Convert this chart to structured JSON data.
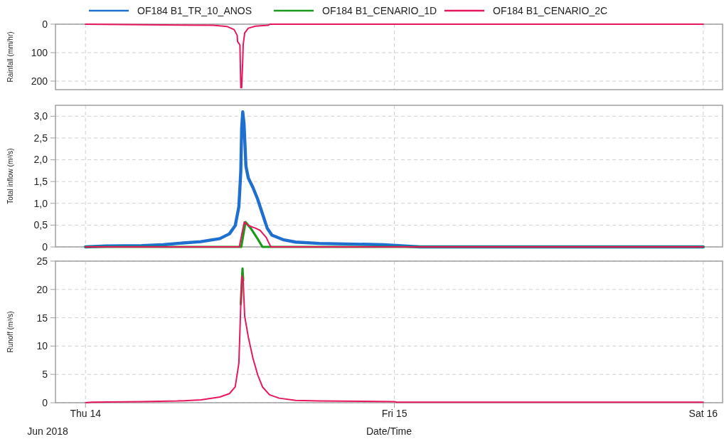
{
  "chart_data": [
    {
      "type": "line",
      "ylabel": "Rainfall (mm/hr)",
      "xlim": [
        "2018-06-13T21:40",
        "2018-06-16T01:30"
      ],
      "xticks": [
        {
          "value": "2018-06-14",
          "label": null
        },
        {
          "value": "2018-06-15",
          "label": null
        },
        {
          "value": "2018-06-16",
          "label": null
        }
      ],
      "ylim": [
        230,
        0
      ],
      "yticks": [
        0,
        100,
        200
      ],
      "grid": true,
      "tick_labels": "y",
      "series": [
        {
          "color": "#e8175d",
          "x": [
            "2018-06-14T00:00",
            "2018-06-14T09:56",
            "2018-06-14T10:59",
            "2018-06-14T11:33",
            "2018-06-14T11:47",
            "2018-06-14T11:49",
            "2018-06-14T12:00",
            "2018-06-14T12:04",
            "2018-06-14T12:08",
            "2018-06-14T12:13",
            "2018-06-14T12:15",
            "2018-06-14T12:22",
            "2018-06-14T12:39",
            "2018-06-14T13:12",
            "2018-06-14T14:11",
            "2018-06-14T14:20",
            "2018-06-16T00:00"
          ],
          "values": [
            0,
            4,
            8,
            19,
            39,
            61,
            73,
            223,
            223,
            127,
            73,
            31,
            14,
            7,
            4,
            0,
            0
          ]
        }
      ]
    },
    {
      "type": "line",
      "ylabel": "Total inflow (m³/s)",
      "xlim": [
        "2018-06-13T21:40",
        "2018-06-16T01:30"
      ],
      "xticks": [
        {
          "value": "2018-06-14",
          "label": null
        },
        {
          "value": "2018-06-15",
          "label": null
        },
        {
          "value": "2018-06-16",
          "label": null
        }
      ],
      "ylim": [
        0,
        3.25
      ],
      "yticks": [
        0,
        {
          "value": 0.5,
          "label": "0,5"
        },
        {
          "value": 1,
          "label": "1,0"
        },
        {
          "value": 1.5,
          "label": "1,5"
        },
        {
          "value": 2,
          "label": "2,0"
        },
        {
          "value": 2.5,
          "label": "2,5"
        },
        {
          "value": 3,
          "label": "3,0"
        }
      ],
      "grid": true,
      "tick_labels": "y",
      "legend": "top",
      "series": [
        {
          "name": "OF184 B1_TR_10_ANOS",
          "color": "#1f6fd1",
          "x": [
            "2018-06-14T00:00",
            "2018-06-14T01:36",
            "2018-06-14T04:22",
            "2018-06-14T06:01",
            "2018-06-14T07:08",
            "2018-06-14T08:58",
            "2018-06-14T10:26",
            "2018-06-14T11:11",
            "2018-06-14T11:38",
            "2018-06-14T11:55",
            "2018-06-14T12:04",
            "2018-06-14T12:08",
            "2018-06-14T12:13",
            "2018-06-14T12:19",
            "2018-06-14T12:28",
            "2018-06-14T12:39",
            "2018-06-14T13:01",
            "2018-06-14T13:23",
            "2018-06-14T13:45",
            "2018-06-14T14:07",
            "2018-06-14T14:29",
            "2018-06-14T15:25",
            "2018-06-14T16:20",
            "2018-06-14T18:10",
            "2018-06-14T23:09",
            "2018-06-15T00:48",
            "2018-06-15T02:00",
            "2018-06-16T00:00"
          ],
          "values": [
            0,
            0.02,
            0.03,
            0.05,
            0.08,
            0.12,
            0.19,
            0.3,
            0.49,
            0.92,
            1.74,
            2.72,
            3.1,
            2.83,
            1.85,
            1.58,
            1.36,
            1.09,
            0.76,
            0.43,
            0.27,
            0.16,
            0.11,
            0.08,
            0.05,
            0.02,
            0,
            0
          ]
        },
        {
          "name": "OF184 B1_CENARIO_1D",
          "color": "#1a9a1a",
          "x": [
            "2018-06-14T00:00",
            "2018-06-14T12:06",
            "2018-06-14T12:26",
            "2018-06-14T12:50",
            "2018-06-14T13:18",
            "2018-06-14T13:45",
            "2018-06-16T00:00"
          ],
          "values": [
            0,
            0,
            0.57,
            0.43,
            0.22,
            0,
            0
          ]
        },
        {
          "name": "OF184 B1_CENARIO_2C",
          "color": "#e8175d",
          "x": [
            "2018-06-14T00:00",
            "2018-06-14T11:57",
            "2018-06-14T12:20",
            "2018-06-14T12:39",
            "2018-06-14T13:12",
            "2018-06-14T13:34",
            "2018-06-14T14:02",
            "2018-06-14T14:24",
            "2018-06-16T00:00"
          ],
          "values": [
            0,
            0,
            0.57,
            0.49,
            0.43,
            0.38,
            0.22,
            0,
            0
          ]
        }
      ]
    },
    {
      "type": "line",
      "ylabel": "Runoff (m³/s)",
      "xlabel": "Date/Time",
      "annotations": [
        "Jun 2018"
      ],
      "xlim": [
        "2018-06-13T21:40",
        "2018-06-16T01:30"
      ],
      "xticks": [
        {
          "value": "2018-06-14",
          "label": "Thu 14"
        },
        {
          "value": "2018-06-15",
          "label": "Fri 15"
        },
        {
          "value": "2018-06-16",
          "label": "Sat 16"
        }
      ],
      "ylim": [
        0,
        25
      ],
      "yticks": [
        0,
        5,
        10,
        15,
        20,
        25
      ],
      "grid": true,
      "series": [
        {
          "color": "#1a9a1a",
          "x": [
            "2018-06-14T12:04",
            "2018-06-14T12:12",
            "2018-06-14T12:15"
          ],
          "values": [
            17.4,
            23.7,
            21.6
          ]
        },
        {
          "color": "#e8175d",
          "x": [
            "2018-06-14T00:00",
            "2018-06-14T00:30",
            "2018-06-14T04:22",
            "2018-06-14T07:08",
            "2018-06-14T08:58",
            "2018-06-14T10:26",
            "2018-06-14T11:11",
            "2018-06-14T11:38",
            "2018-06-14T11:55",
            "2018-06-14T12:04",
            "2018-06-14T12:09",
            "2018-06-14T12:15",
            "2018-06-14T12:22",
            "2018-06-14T12:39",
            "2018-06-14T13:01",
            "2018-06-14T13:23",
            "2018-06-14T13:45",
            "2018-06-14T14:18",
            "2018-06-14T15:03",
            "2018-06-14T16:20",
            "2018-06-14T18:10",
            "2018-06-15T00:00",
            "2018-06-15T00:10",
            "2018-06-16T00:00"
          ],
          "values": [
            0,
            0.1,
            0.2,
            0.3,
            0.5,
            1,
            1.6,
            2.8,
            7,
            17.4,
            22.4,
            21.6,
            15.3,
            11.6,
            7.8,
            4.9,
            2.8,
            1.4,
            0.8,
            0.4,
            0.3,
            0.2,
            0.1,
            0.1
          ]
        }
      ]
    }
  ]
}
